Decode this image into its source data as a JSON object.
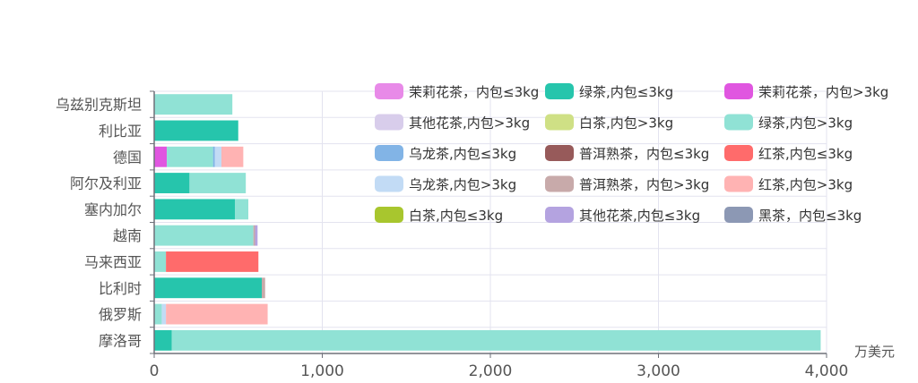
{
  "chart_data": {
    "type": "bar",
    "orientation": "horizontal",
    "stacked": true,
    "x_unit_label": "万美元",
    "xlim": [
      0,
      4000
    ],
    "x_ticks": [
      0,
      1000,
      2000,
      3000,
      4000
    ],
    "x_tick_labels": [
      "0",
      "1,000",
      "2,000",
      "3,000",
      "4,000"
    ],
    "grid": true,
    "legend_position": "top-right",
    "categories": [
      "乌兹别克斯坦",
      "利比亚",
      "德国",
      "阿尔及利亚",
      "塞内加尔",
      "越南",
      "马来西亚",
      "比利时",
      "俄罗斯",
      "摩洛哥"
    ],
    "series": [
      {
        "name": "茉莉花茶，内包≤3kg",
        "color": "#e88ae8",
        "values": [
          0,
          0,
          0,
          0,
          0,
          0,
          0,
          0,
          0,
          0
        ]
      },
      {
        "name": "绿茶,内包≤3kg",
        "color": "#26c5ac",
        "values": [
          0,
          500,
          0,
          210,
          480,
          0,
          0,
          640,
          0,
          105
        ]
      },
      {
        "name": "茉莉花茶，内包>3kg",
        "color": "#e056e0",
        "values": [
          0,
          0,
          75,
          0,
          0,
          0,
          0,
          0,
          0,
          0
        ]
      },
      {
        "name": "其他花茶,内包>3kg",
        "color": "#d8cdeb",
        "values": [
          0,
          0,
          0,
          0,
          0,
          0,
          0,
          0,
          0,
          0
        ]
      },
      {
        "name": "白茶,内包>3kg",
        "color": "#cfe085",
        "values": [
          0,
          0,
          0,
          0,
          0,
          0,
          0,
          0,
          0,
          0
        ]
      },
      {
        "name": "绿茶,内包>3kg",
        "color": "#90e2d5",
        "values": [
          465,
          0,
          275,
          335,
          80,
          590,
          70,
          0,
          45,
          3860
        ]
      },
      {
        "name": "乌龙茶,内包≤3kg",
        "color": "#82b4e6",
        "values": [
          0,
          0,
          10,
          0,
          0,
          0,
          0,
          0,
          0,
          0
        ]
      },
      {
        "name": "普洱熟茶，内包≤3kg",
        "color": "#975a5a",
        "values": [
          0,
          0,
          0,
          0,
          0,
          0,
          0,
          0,
          0,
          0
        ]
      },
      {
        "name": "红茶,内包≤3kg",
        "color": "#ff6b6b",
        "values": [
          0,
          0,
          0,
          0,
          0,
          0,
          550,
          0,
          0,
          0
        ]
      },
      {
        "name": "乌龙茶,内包>3kg",
        "color": "#c2dbf5",
        "values": [
          0,
          0,
          40,
          0,
          0,
          0,
          0,
          0,
          25,
          0
        ]
      },
      {
        "name": "普洱熟茶，内包>3kg",
        "color": "#c8aaaa",
        "values": [
          0,
          0,
          0,
          0,
          0,
          10,
          0,
          20,
          0,
          0
        ]
      },
      {
        "name": "红茶,内包>3kg",
        "color": "#ffb3b3",
        "values": [
          0,
          0,
          130,
          0,
          0,
          0,
          0,
          0,
          605,
          0
        ]
      },
      {
        "name": "白茶,内包≤3kg",
        "color": "#a8c62e",
        "values": [
          0,
          0,
          0,
          0,
          0,
          0,
          0,
          0,
          0,
          0
        ]
      },
      {
        "name": "其他花茶,内包≤3kg",
        "color": "#b4a3e0",
        "values": [
          0,
          0,
          0,
          0,
          0,
          15,
          0,
          0,
          0,
          0
        ]
      },
      {
        "name": "黑茶，内包≤3kg",
        "color": "#8c98b4",
        "values": [
          0,
          0,
          0,
          0,
          0,
          0,
          0,
          0,
          0,
          0
        ]
      }
    ]
  }
}
